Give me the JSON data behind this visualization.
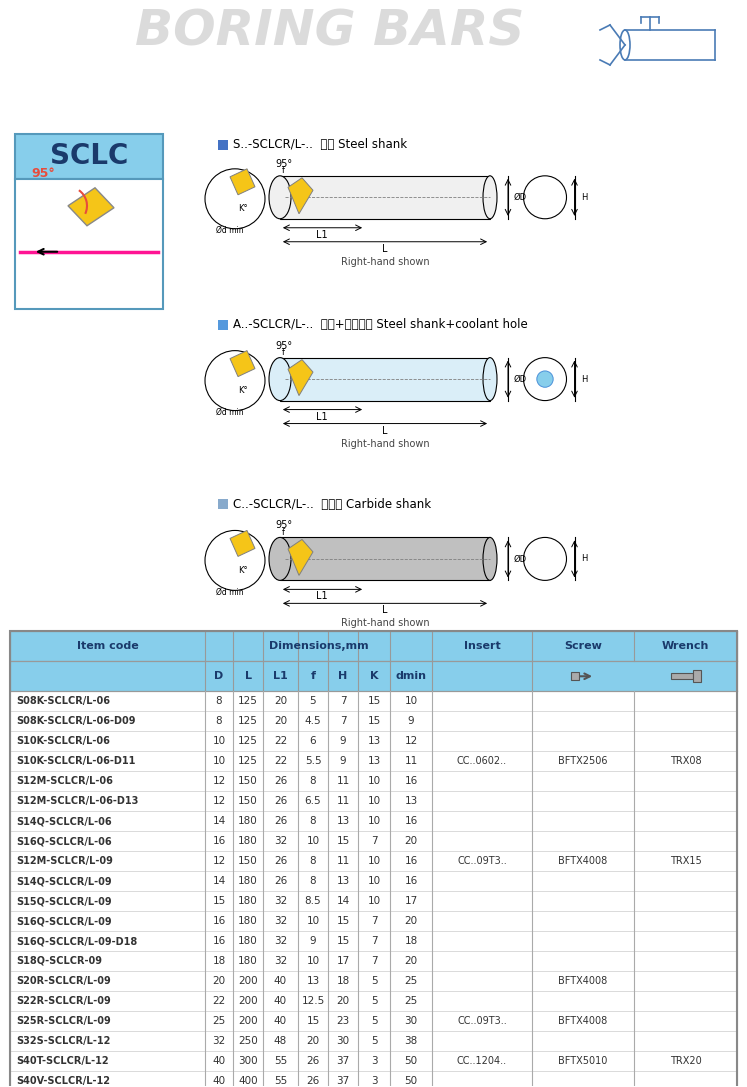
{
  "title": "BORING BARS",
  "bg_color": "#ffffff",
  "table_header_bg": "#87ceeb",
  "section_headers": [
    "S..-SCLCR/L-..  鲸柄 Steel shank",
    "A..-SCLCR/L-..  鲸柄+中心水孔 Steel shank+coolant hole",
    "C..-SCLCR/L-..  鹮鲸柄 Carbide shank"
  ],
  "col_headers_sub": [
    "D",
    "L",
    "L1",
    "f",
    "H",
    "K",
    "dmin"
  ],
  "table_rows": [
    [
      "S08K-SCLCR/L-06",
      "8",
      "125",
      "20",
      "5",
      "7",
      "15",
      "10",
      "",
      "",
      ""
    ],
    [
      "S08K-SCLCR/L-06-D09",
      "8",
      "125",
      "20",
      "4.5",
      "7",
      "15",
      "9",
      "",
      "",
      ""
    ],
    [
      "S10K-SCLCR/L-06",
      "10",
      "125",
      "22",
      "6",
      "9",
      "13",
      "12",
      "",
      "",
      ""
    ],
    [
      "S10K-SCLCR/L-06-D11",
      "10",
      "125",
      "22",
      "5.5",
      "9",
      "13",
      "11",
      "CC..0602..",
      "BFTX2506",
      "TRX08"
    ],
    [
      "S12M-SCLCR/L-06",
      "12",
      "150",
      "26",
      "8",
      "11",
      "10",
      "16",
      "",
      "",
      ""
    ],
    [
      "S12M-SCLCR/L-06-D13",
      "12",
      "150",
      "26",
      "6.5",
      "11",
      "10",
      "13",
      "",
      "",
      ""
    ],
    [
      "S14Q-SCLCR/L-06",
      "14",
      "180",
      "26",
      "8",
      "13",
      "10",
      "16",
      "",
      "",
      ""
    ],
    [
      "S16Q-SCLCR/L-06",
      "16",
      "180",
      "32",
      "10",
      "15",
      "7",
      "20",
      "",
      "",
      ""
    ],
    [
      "S12M-SCLCR/L-09",
      "12",
      "150",
      "26",
      "8",
      "11",
      "10",
      "16",
      "CC..09T3..",
      "BFTX4008",
      "TRX15"
    ],
    [
      "S14Q-SCLCR/L-09",
      "14",
      "180",
      "26",
      "8",
      "13",
      "10",
      "16",
      "",
      "",
      ""
    ],
    [
      "S15Q-SCLCR/L-09",
      "15",
      "180",
      "32",
      "8.5",
      "14",
      "10",
      "17",
      "",
      "",
      ""
    ],
    [
      "S16Q-SCLCR/L-09",
      "16",
      "180",
      "32",
      "10",
      "15",
      "7",
      "20",
      "",
      "",
      ""
    ],
    [
      "S16Q-SCLCR/L-09-D18",
      "16",
      "180",
      "32",
      "9",
      "15",
      "7",
      "18",
      "",
      "",
      ""
    ],
    [
      "S18Q-SCLCR-09",
      "18",
      "180",
      "32",
      "10",
      "17",
      "7",
      "20",
      "",
      "",
      ""
    ],
    [
      "S20R-SCLCR/L-09",
      "20",
      "200",
      "40",
      "13",
      "18",
      "5",
      "25",
      "",
      "BFTX4008",
      ""
    ],
    [
      "S22R-SCLCR/L-09",
      "22",
      "200",
      "40",
      "12.5",
      "20",
      "5",
      "25",
      "",
      "",
      ""
    ],
    [
      "S25R-SCLCR/L-09",
      "25",
      "200",
      "40",
      "15",
      "23",
      "5",
      "30",
      "CC..09T3..",
      "BFTX4008",
      ""
    ],
    [
      "S32S-SCLCR/L-12",
      "32",
      "250",
      "48",
      "20",
      "30",
      "5",
      "38",
      "",
      "",
      ""
    ],
    [
      "S40T-SCLCR/L-12",
      "40",
      "300",
      "55",
      "26",
      "37",
      "3",
      "50",
      "CC..1204..",
      "BFTX5010",
      "TRX20"
    ],
    [
      "S40V-SCLCR/L-12",
      "40",
      "400",
      "55",
      "26",
      "37",
      "3",
      "50",
      "",
      "",
      ""
    ]
  ]
}
